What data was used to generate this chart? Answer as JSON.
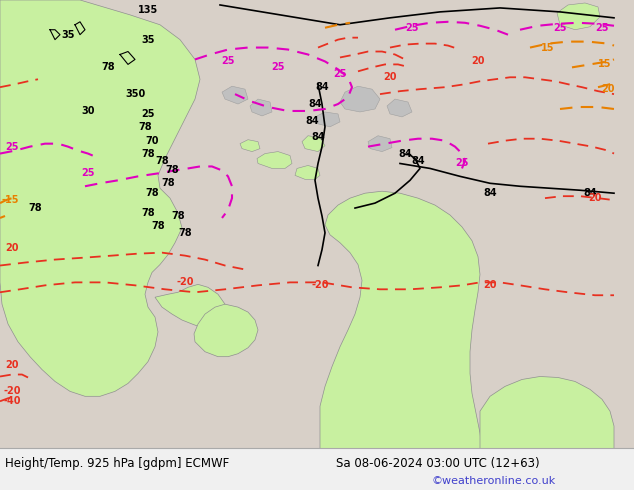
{
  "title_left": "Height/Temp. 925 hPa [gdpm] ECMWF",
  "title_right": "Sa 08-06-2024 03:00 UTC (12+63)",
  "credit": "©weatheronline.co.uk",
  "bg_ocean": "#d8d0c8",
  "bg_fig": "#ffffff",
  "land_green": "#c8f0a0",
  "land_gray": "#c0c0c0",
  "black": "#000000",
  "red": "#e83020",
  "magenta": "#e000c0",
  "orange": "#e88000",
  "bottom_bg": "#f0f0f0",
  "credit_color": "#4040cc",
  "fig_width": 6.34,
  "fig_height": 4.9,
  "dpi": 100
}
